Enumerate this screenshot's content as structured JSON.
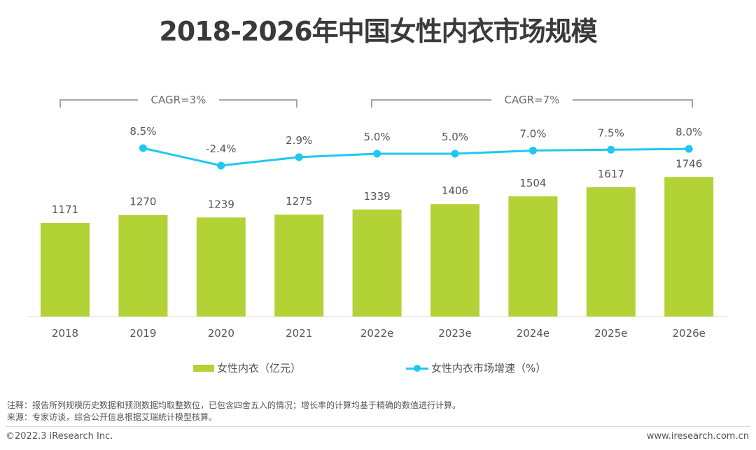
{
  "title": "2018-2026年中国女性内衣市场规模",
  "chart_data": {
    "type": "bar",
    "title": "2018-2026年中国女性内衣市场规模",
    "categories": [
      "2018",
      "2019",
      "2020",
      "2021",
      "2022e",
      "2023e",
      "2024e",
      "2025e",
      "2026e"
    ],
    "series": [
      {
        "name": "女性内衣（亿元）",
        "type": "bar",
        "axis": "left",
        "color": "#b3d235",
        "values": [
          1171,
          1270,
          1239,
          1275,
          1339,
          1406,
          1504,
          1617,
          1746
        ],
        "labels": [
          "1171",
          "1270",
          "1239",
          "1275",
          "1339",
          "1406",
          "1504",
          "1617",
          "1746"
        ]
      },
      {
        "name": "女性内衣市场增速（%）",
        "type": "line",
        "axis": "right",
        "color": "#1ec8ef",
        "values": [
          null,
          8.5,
          -2.4,
          2.9,
          5.0,
          5.0,
          7.0,
          7.5,
          8.0
        ],
        "labels": [
          "",
          "8.5%",
          "-2.4%",
          "2.9%",
          "5.0%",
          "5.0%",
          "7.0%",
          "7.5%",
          "8.0%"
        ]
      }
    ],
    "xlabel": "",
    "ylabel": "",
    "ylim": [
      0,
      1800
    ],
    "y2lim": [
      -2.4,
      8.5
    ],
    "grid": false,
    "legend": "bottom",
    "annotations": [
      {
        "text": "CAGR=3%",
        "from": "2018",
        "to": "2021"
      },
      {
        "text": "CAGR=7%",
        "from": "2022e",
        "to": "2026e"
      }
    ]
  },
  "legend": {
    "bar_label": "女性内衣（亿元）",
    "line_label": "女性内衣市场增速（%）"
  },
  "notes": {
    "note": "注释：报告所列规模历史数据和预测数据均取整数位，已包含四舍五入的情况；增长率的计算均基于精确的数值进行计算。",
    "source": "来源：专家访谈，综合公开信息根据艾瑞统计模型核算。"
  },
  "footer": {
    "copyright": "©2022.3 iResearch Inc.",
    "website": "www.iresearch.com.cn"
  }
}
